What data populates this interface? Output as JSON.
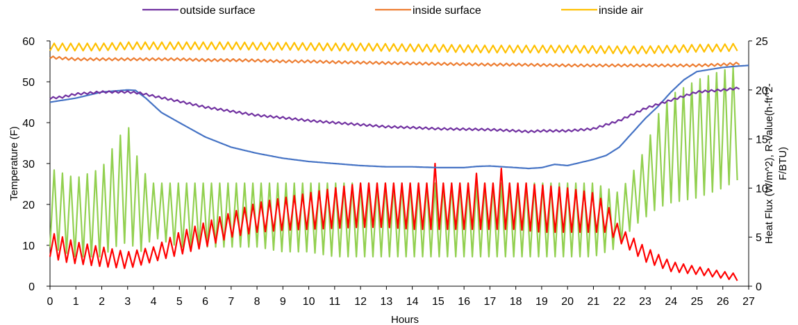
{
  "chart_data": {
    "type": "line",
    "xlabel": "Hours",
    "ylabel_left": "Temperature (F)",
    "ylabel_right_line1": "Heat Flux (W/m^2),  R-value(h-ft^2-",
    "ylabel_right_line2": "F/BTU)",
    "xlim": [
      0,
      27
    ],
    "ylim_left": [
      0,
      60
    ],
    "ylim_right": [
      0,
      25
    ],
    "x_ticks": [
      "0",
      "1",
      "2",
      "3",
      "4",
      "5",
      "6",
      "7",
      "8",
      "9",
      "10",
      "11",
      "12",
      "13",
      "14",
      "15",
      "16",
      "17",
      "18",
      "19",
      "20",
      "21",
      "22",
      "23",
      "24",
      "25",
      "26",
      "27"
    ],
    "y_left_ticks": [
      "0",
      "10",
      "20",
      "30",
      "40",
      "50",
      "60"
    ],
    "y_right_ticks": [
      "0",
      "5",
      "10",
      "15",
      "20",
      "25"
    ],
    "grid": false,
    "legend_position": "top",
    "colors": {
      "outside_surface": "#7030a0",
      "inside_surface": "#ed7d31",
      "inside_air": "#ffc000",
      "blue_series": "#4472c4",
      "green_series": "#92d050",
      "red_series": "#ff0000"
    },
    "series": [
      {
        "name": "outside surface",
        "axis": "left",
        "x": [
          0,
          0.5,
          1,
          2,
          3,
          3.5,
          4,
          5,
          6,
          7,
          8,
          9,
          10,
          11,
          12,
          13,
          14,
          15,
          16,
          17,
          18,
          18.5,
          19,
          20,
          21,
          22,
          23,
          24,
          25,
          26,
          26.7
        ],
        "values": [
          46,
          46.3,
          47,
          47.5,
          47.5,
          47.2,
          46.5,
          45.2,
          43.8,
          42.8,
          41.8,
          41.2,
          40.5,
          40,
          39.5,
          39,
          38.8,
          38.5,
          38.4,
          38.3,
          38,
          37.8,
          38,
          38,
          38.5,
          40.5,
          43.5,
          45.5,
          47.5,
          48,
          48.5
        ]
      },
      {
        "name": "inside surface",
        "axis": "left",
        "x": [
          0,
          1,
          2,
          3,
          4,
          5,
          6,
          7,
          8,
          9,
          10,
          11,
          12,
          13,
          14,
          15,
          16,
          17,
          18,
          19,
          20,
          21,
          22,
          23,
          24,
          25,
          26,
          26.7
        ],
        "values": [
          56,
          55.5,
          55.5,
          55.5,
          55.5,
          55.5,
          55.3,
          55.3,
          55.2,
          55,
          55,
          54.8,
          54.7,
          54.6,
          54.5,
          54.4,
          54.3,
          54.2,
          54.2,
          54.1,
          54,
          54,
          54,
          54,
          54,
          54,
          54.2,
          54.5
        ]
      },
      {
        "name": "inside air",
        "axis": "left",
        "x": [
          0,
          1,
          2,
          3,
          4,
          5,
          6,
          7,
          8,
          9,
          10,
          11,
          12,
          13,
          14,
          15,
          16,
          17,
          18,
          19,
          20,
          21,
          22,
          23,
          24,
          25,
          26,
          26.7
        ],
        "values": [
          58.5,
          58.5,
          58.5,
          58.8,
          58.8,
          58.8,
          58.8,
          58.8,
          58.7,
          58.7,
          58.6,
          58.5,
          58.5,
          58.4,
          58.3,
          58.2,
          58.1,
          58,
          58,
          58,
          58,
          57.9,
          57.8,
          57.8,
          58,
          58.2,
          58.3,
          58.5
        ]
      },
      {
        "axis": "left",
        "x": [
          0,
          0.5,
          1,
          2,
          3,
          3.3,
          3.7,
          4.3,
          5,
          6,
          7,
          8,
          9,
          10,
          11,
          12,
          13,
          14,
          15,
          16,
          16.5,
          17,
          18,
          18.5,
          19,
          19.5,
          20,
          21,
          21.5,
          22,
          22.5,
          23,
          23.5,
          24,
          24.5,
          25,
          26,
          26.5,
          27
        ],
        "values": [
          45,
          45.5,
          46,
          47.5,
          48,
          47.9,
          46,
          42.5,
          40,
          36.5,
          34,
          32.5,
          31.3,
          30.5,
          30,
          29.5,
          29.2,
          29.2,
          29,
          29,
          29.3,
          29.4,
          29,
          28.8,
          29,
          29.8,
          29.5,
          31,
          32,
          34,
          37.5,
          41,
          44,
          47.5,
          50.5,
          52.5,
          53.5,
          53.8,
          54
        ]
      },
      {
        "axis": "right",
        "x": [
          0,
          1,
          2,
          2.5,
          3,
          3.5,
          4,
          5,
          6,
          7,
          8,
          9,
          10,
          11,
          12,
          13,
          14,
          15,
          16,
          17,
          18,
          19,
          20,
          21,
          22,
          22.5,
          23,
          23.5,
          24,
          25,
          26,
          26.7
        ],
        "low": [
          4,
          3,
          3,
          4,
          4.5,
          3.5,
          5,
          4,
          4,
          4,
          4,
          3.5,
          3.5,
          3,
          3,
          3,
          3,
          3,
          3,
          3,
          3,
          3,
          3,
          3,
          4,
          6,
          7,
          8,
          8.5,
          9,
          10,
          11
        ],
        "high": [
          12,
          11,
          12,
          14.5,
          16.5,
          12,
          10.5,
          10.5,
          10.5,
          10.5,
          10.5,
          10.5,
          10.5,
          10.5,
          10.5,
          10.5,
          10.5,
          10.5,
          10.5,
          10.5,
          10.5,
          10.5,
          10.5,
          10.5,
          9.5,
          11.5,
          14,
          17.5,
          19.5,
          21,
          22,
          22.5
        ]
      },
      {
        "axis": "right",
        "x": [
          0,
          0.5,
          1,
          2,
          3,
          4,
          5,
          6,
          7,
          8,
          9,
          10,
          11,
          12,
          13,
          14,
          15,
          16,
          17,
          18,
          19,
          20,
          21,
          21.5,
          22,
          23,
          24,
          25,
          26,
          26.7
        ],
        "low": [
          3,
          2.5,
          2.3,
          2,
          1.8,
          2.5,
          3.2,
          4,
          5,
          5.5,
          5.7,
          5.8,
          5.9,
          6,
          6,
          5.8,
          5.8,
          5.8,
          5.8,
          5.8,
          5.5,
          5.5,
          5.5,
          5.5,
          4.5,
          2.5,
          1.5,
          1.2,
          0.8,
          0.5
        ],
        "high": [
          5.5,
          5,
          4.5,
          4,
          3.5,
          4,
          5.5,
          6.5,
          7.5,
          8.5,
          9,
          9.5,
          10,
          10.5,
          10.5,
          10.5,
          10.5,
          10.5,
          10.5,
          10.5,
          10.3,
          10,
          9.5,
          8.5,
          6,
          4,
          2.5,
          2,
          1.5,
          1.2
        ],
        "spikes": [
          [
            14.8,
            12.5
          ],
          [
            16,
            13.2
          ],
          [
            16.5,
            11.5
          ],
          [
            17.5,
            12
          ],
          [
            18.5,
            10.5
          ],
          [
            20.5,
            10
          ]
        ]
      }
    ],
    "legend": [
      {
        "label": "outside surface",
        "color": "#7030a0"
      },
      {
        "label": "inside surface",
        "color": "#ed7d31"
      },
      {
        "label": "inside air",
        "color": "#ffc000"
      }
    ]
  }
}
